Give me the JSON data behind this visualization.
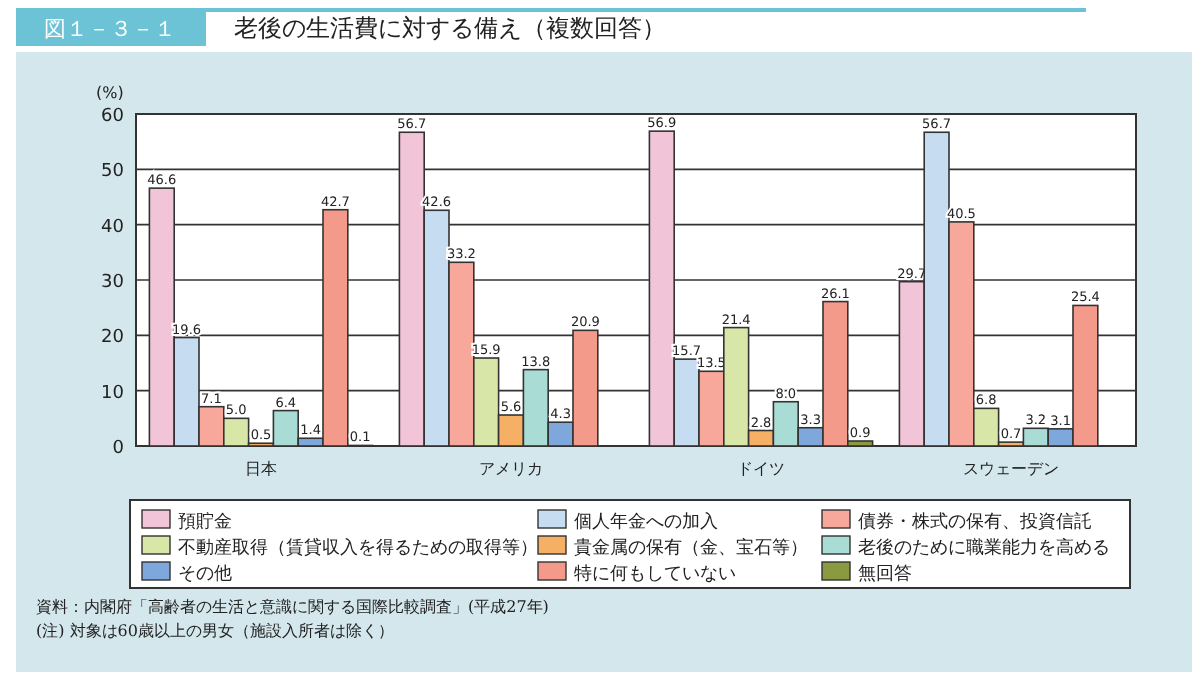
{
  "chart_data": {
    "type": "bar",
    "title": "老後の生活費に対する備え（複数回答）",
    "ylabel": "(%)",
    "categories": [
      "日本",
      "アメリカ",
      "ドイツ",
      "スウェーデン"
    ],
    "series": [
      {
        "name": "預貯金",
        "color": "#f2c4d8",
        "values": [
          46.6,
          56.7,
          56.9,
          29.7
        ],
        "value_labels": [
          "46.6",
          "56.7",
          "56.9",
          "29.7"
        ]
      },
      {
        "name": "個人年金への加入",
        "color": "#c6dcf0",
        "values": [
          19.6,
          42.6,
          15.7,
          56.7
        ],
        "value_labels": [
          "19.6",
          "42.6",
          "15.7",
          "56.7"
        ]
      },
      {
        "name": "債券・株式の保有、投資信託",
        "color": "#f7a89a",
        "values": [
          7.1,
          33.2,
          13.5,
          40.5
        ],
        "value_labels": [
          "7.1",
          "33.2",
          "13.5",
          "40.5"
        ]
      },
      {
        "name": "不動産取得（賃貸収入を得るための取得等）",
        "color": "#d8e6a8",
        "values": [
          5.0,
          15.9,
          21.4,
          6.8
        ],
        "value_labels": [
          "5.0",
          "15.9",
          "21.4",
          "6.8"
        ]
      },
      {
        "name": "貴金属の保有（金、宝石等）",
        "color": "#f5b066",
        "values": [
          0.5,
          5.6,
          2.8,
          0.7
        ],
        "value_labels": [
          "0.5",
          "5.6",
          "2.8",
          "0.7"
        ]
      },
      {
        "name": "老後のために職業能力を高める",
        "color": "#a8dcd4",
        "values": [
          6.4,
          13.8,
          8.0,
          3.2
        ],
        "value_labels": [
          "6.4",
          "13.8",
          "8.0",
          "3.2"
        ]
      },
      {
        "name": "その他",
        "color": "#7ea8dc",
        "values": [
          1.4,
          4.3,
          3.3,
          3.1
        ],
        "value_labels": [
          "1.4",
          "4.3",
          "3.3",
          "3.1"
        ]
      },
      {
        "name": "特に何もしていない",
        "color": "#f49a8a",
        "values": [
          42.7,
          20.9,
          26.1,
          25.4
        ],
        "value_labels": [
          "42.7",
          "20.9",
          "26.1",
          "25.4"
        ]
      },
      {
        "name": "無回答",
        "color": "#8a9a40",
        "values": [
          0.1,
          null,
          0.9,
          null
        ],
        "value_labels": [
          "0.1",
          null,
          "0.9",
          null
        ]
      }
    ],
    "ylim": [
      0,
      60
    ],
    "yticks": [
      0,
      10,
      20,
      30,
      40,
      50,
      60
    ],
    "grid": "y",
    "legend": "bottom",
    "annotations": [
      "図１－３－１",
      "資料：内閣府「高齢者の生活と意識に関する国際比較調査」(平成27年)",
      "(注) 対象は60歳以上の男女（施設入所者は除く）"
    ]
  }
}
